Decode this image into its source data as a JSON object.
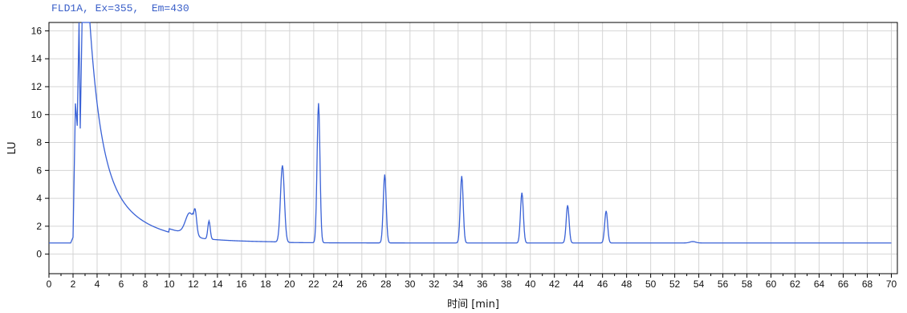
{
  "chart_data": {
    "type": "line",
    "title": "FLD1A, Ex=355,  Em=430",
    "xlabel": "时间 [min]",
    "ylabel": "LU",
    "xlim": [
      0,
      70.5
    ],
    "ylim": [
      -1.4,
      16.6
    ],
    "x_ticks": [
      0,
      2,
      4,
      6,
      8,
      10,
      12,
      14,
      16,
      18,
      20,
      22,
      24,
      26,
      28,
      30,
      32,
      34,
      36,
      38,
      40,
      42,
      44,
      46,
      48,
      50,
      52,
      54,
      56,
      58,
      60,
      62,
      64,
      66,
      68,
      70
    ],
    "y_ticks": [
      0,
      2,
      4,
      6,
      8,
      10,
      12,
      14,
      16
    ],
    "grid": true,
    "color": "#3a62d6",
    "baseline": [
      {
        "x": 0,
        "y": 0.8
      },
      {
        "x": 1.8,
        "y": 0.8
      }
    ],
    "solvent_front": {
      "rise_x": [
        2.0,
        2.2,
        2.35,
        2.5,
        2.6
      ],
      "rise_y": [
        1.2,
        10.8,
        9.2,
        16.6,
        9.0
      ],
      "plateau_end_x": 3.4,
      "decay_start_y": 16.6
    },
    "peaks": [
      {
        "x": 11.7,
        "y": 3.0
      },
      {
        "x": 12.15,
        "y": 2.2
      },
      {
        "x": 13.3,
        "y": 2.1
      },
      {
        "x": 19.4,
        "y": 6.3
      },
      {
        "x": 22.4,
        "y": 10.8
      },
      {
        "x": 27.9,
        "y": 5.7
      },
      {
        "x": 34.3,
        "y": 5.6
      },
      {
        "x": 39.3,
        "y": 4.4
      },
      {
        "x": 43.1,
        "y": 3.5
      },
      {
        "x": 46.3,
        "y": 3.1
      },
      {
        "x": 53.5,
        "y": 0.9
      }
    ]
  }
}
